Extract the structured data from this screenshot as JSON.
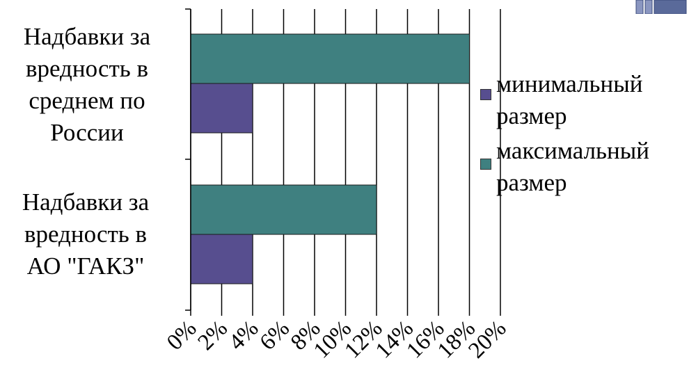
{
  "chart_data": {
    "type": "bar",
    "orientation": "horizontal",
    "categories": [
      "Надбавки за вредность в среднем по России",
      "Надбавки за вредность в АО \"ГАКЗ\""
    ],
    "series": [
      {
        "name": "минимальный размер",
        "color": "#574e8f",
        "values": [
          4,
          4
        ]
      },
      {
        "name": "максимальный размер",
        "color": "#3f8080",
        "values": [
          18,
          12
        ]
      }
    ],
    "xlim": [
      0,
      20
    ],
    "x_ticks": [
      "0%",
      "2%",
      "4%",
      "6%",
      "8%",
      "10%",
      "12%",
      "14%",
      "16%",
      "18%",
      "20%"
    ],
    "grid": true,
    "legend_position": "right",
    "title": "",
    "xlabel": "",
    "ylabel": ""
  },
  "category_labels": [
    "Надбавки за\nвредность в\nсреднем по\nРоссии",
    "Надбавки за\nвредность в\nАО \"ГАКЗ\""
  ],
  "legend_labels": [
    "минимальный\nразмер",
    "максимальный\nразмер"
  ],
  "corner_icon": {
    "name": "slide-decoration-icon",
    "color": "#5a6a9a"
  }
}
